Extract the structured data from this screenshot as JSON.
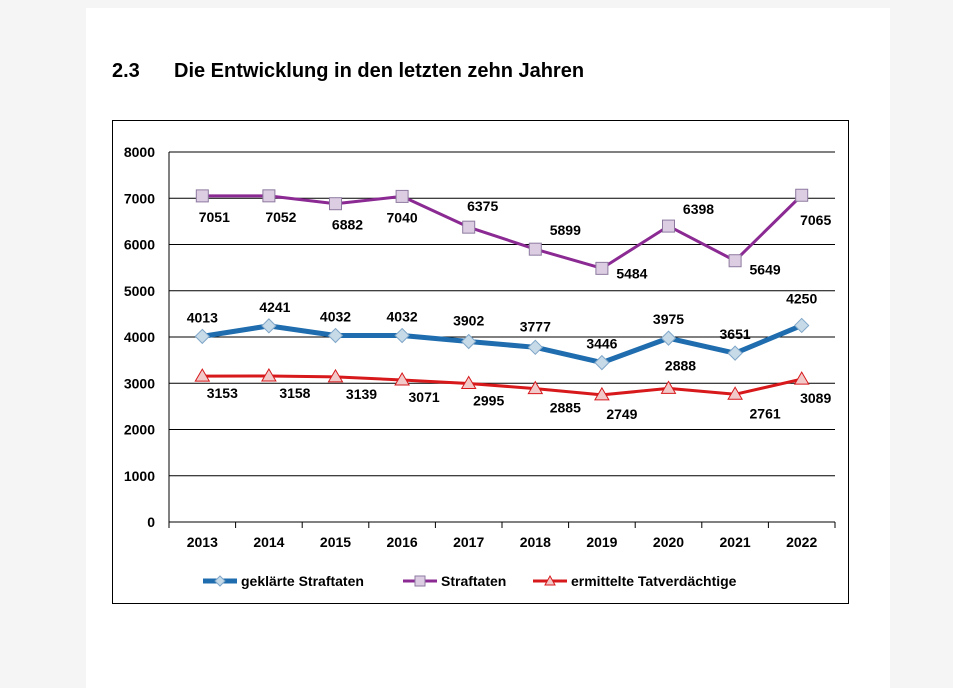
{
  "heading": {
    "number": "2.3",
    "title": "Die Entwicklung in den letzten zehn Jahren"
  },
  "chart_data": {
    "type": "line",
    "categories": [
      "2013",
      "2014",
      "2015",
      "2016",
      "2017",
      "2018",
      "2019",
      "2020",
      "2021",
      "2022"
    ],
    "ylim": [
      0,
      8000
    ],
    "yticks": [
      "0",
      "1000",
      "2000",
      "3000",
      "4000",
      "5000",
      "6000",
      "7000",
      "8000"
    ],
    "grid": true,
    "legend_position": "bottom",
    "series": [
      {
        "name": "geklärte Straftaten",
        "color": "#1F6DAE",
        "marker": "diamond",
        "marker_fill": "#C6DAE8",
        "values": [
          4013,
          4241,
          4032,
          4032,
          3902,
          3777,
          3446,
          3975,
          3651,
          4250
        ],
        "labels": [
          "4013",
          "4241",
          "4032",
          "4032",
          "3902",
          "3777",
          "3446",
          "3975",
          "3651",
          "4250"
        ]
      },
      {
        "name": "Straftaten",
        "color": "#8B2A93",
        "marker": "square",
        "marker_fill": "#DCCDE3",
        "values": [
          7051,
          7052,
          6882,
          7040,
          6375,
          5899,
          5484,
          6398,
          5649,
          7065
        ],
        "labels": [
          "7051",
          "7052",
          "6882",
          "7040",
          "6375",
          "5899",
          "5484",
          "6398",
          "5649",
          "7065"
        ]
      },
      {
        "name": "ermittelte Tatverdächtige",
        "color": "#D7191C",
        "marker": "triangle",
        "marker_fill": "#F2C9C9",
        "values": [
          3153,
          3158,
          3139,
          3071,
          2995,
          2885,
          2749,
          2888,
          2761,
          3089
        ],
        "labels": [
          "3153",
          "3158",
          "3139",
          "3071",
          "2995",
          "2885",
          "2749",
          "2888",
          "2761",
          "3089"
        ]
      }
    ]
  }
}
